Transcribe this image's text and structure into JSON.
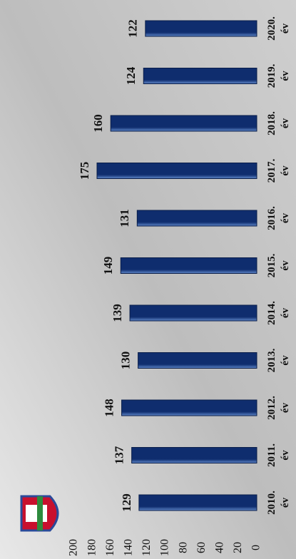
{
  "chart_data": {
    "type": "bar",
    "categories": [
      "2010. év",
      "2011. év",
      "2012. év",
      "2013. év",
      "2014. év",
      "2015. év",
      "2016. év",
      "2017. év",
      "2018. év",
      "2019. év",
      "2020. év"
    ],
    "values": [
      129,
      137,
      148,
      130,
      139,
      149,
      131,
      175,
      160,
      124,
      122
    ],
    "color": "#0f2d6e",
    "ylim": [
      0,
      200
    ],
    "yticks": [
      0,
      20,
      40,
      60,
      80,
      100,
      120,
      140,
      160,
      180,
      200
    ],
    "grid": false
  }
}
